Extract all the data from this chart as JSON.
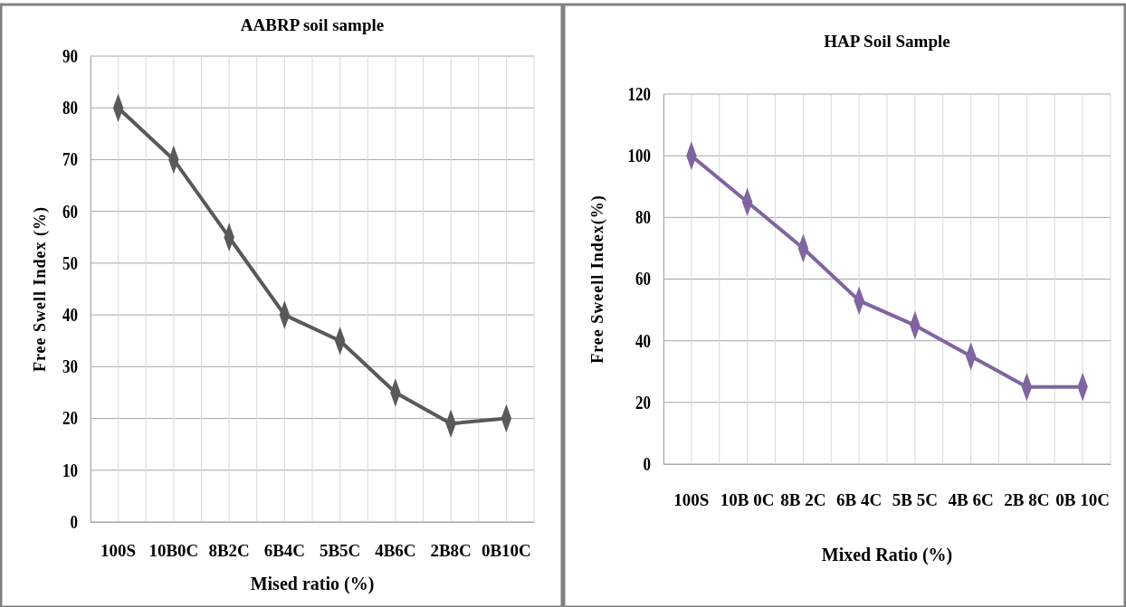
{
  "chart_data": [
    {
      "type": "line",
      "title": "AABRP soil sample",
      "xlabel": "Mised ratio (%)",
      "ylabel": "Free Swell Index (%)",
      "categories": [
        "100S",
        "10B0C",
        "8B2C",
        "6B4C",
        "5B5C",
        "4B6C",
        "2B8C",
        "0B10C"
      ],
      "series": [
        {
          "color": "#595959",
          "values": [
            80,
            70,
            55,
            40,
            35,
            25,
            19,
            20
          ]
        }
      ],
      "ylim": [
        0,
        90
      ],
      "yticks": [
        0,
        10,
        20,
        30,
        40,
        50,
        60,
        70,
        80,
        90
      ],
      "grid": true,
      "marker": "diamond",
      "line_style": "solid"
    },
    {
      "type": "line",
      "title": "HAP Soil Sample",
      "xlabel": "Mixed Ratio (%)",
      "ylabel": "Free Sweell Index(%)",
      "categories": [
        "100S",
        "10B 0C",
        "8B 2C",
        "6B 4C",
        "5B 5C",
        "4B 6C",
        "2B 8C",
        "0B 10C"
      ],
      "series": [
        {
          "color": "#8064a2",
          "values": [
            100,
            85,
            70,
            53,
            45,
            35,
            25,
            25
          ]
        }
      ],
      "ylim": [
        0,
        120
      ],
      "yticks": [
        0,
        20,
        40,
        60,
        80,
        100,
        120
      ],
      "grid": true,
      "marker": "diamond",
      "line_style": "solid"
    }
  ]
}
